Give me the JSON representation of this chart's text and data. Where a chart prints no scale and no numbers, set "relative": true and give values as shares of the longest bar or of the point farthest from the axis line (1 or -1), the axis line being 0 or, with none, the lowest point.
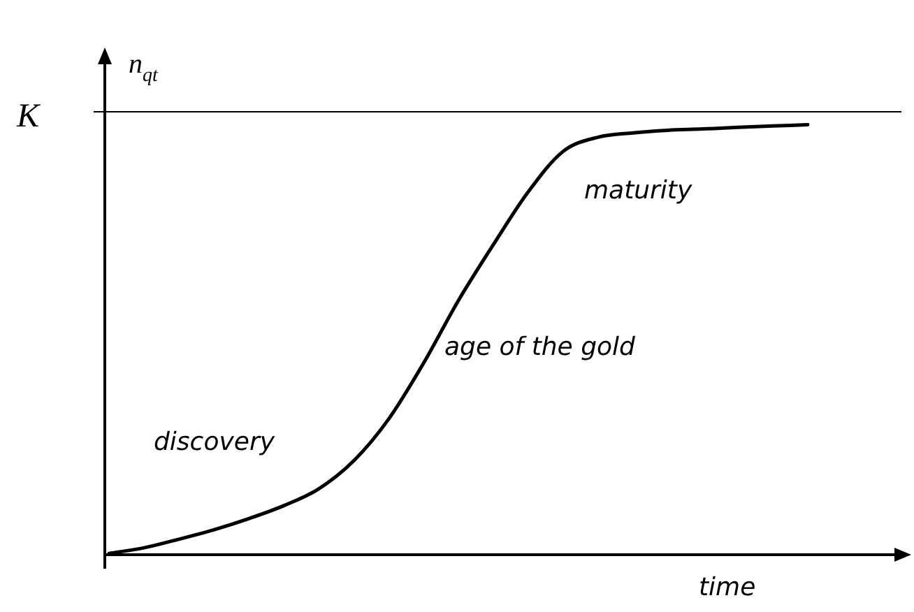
{
  "chart_data": {
    "type": "line",
    "relative": true,
    "xlabel": "time",
    "ylabel": "n$_{qt}$",
    "categories": [
      null,
      null,
      null,
      null,
      null,
      null,
      null,
      null,
      null,
      null,
      null,
      null,
      null,
      null,
      null,
      null,
      null,
      null,
      null,
      null,
      null
    ],
    "series": [
      {
        "color": "#000000",
        "values": [
          0.003,
          0.016,
          0.036,
          0.058,
          0.084,
          0.114,
          0.153,
          0.218,
          0.315,
          0.445,
          0.591,
          0.721,
          0.844,
          0.938,
          0.971,
          0.981,
          0.987,
          0.99,
          0.994,
          0.997,
          1
        ]
      }
    ],
    "ref_lines": [
      {
        "axis": "y",
        "value": 1.03,
        "label": "K",
        "color": "#000000"
      }
    ],
    "annotations": [
      "discovery",
      "age of the gold",
      "maturity"
    ],
    "marker": "none",
    "line_style": "solid",
    "legend": false,
    "tick_labels": false
  }
}
